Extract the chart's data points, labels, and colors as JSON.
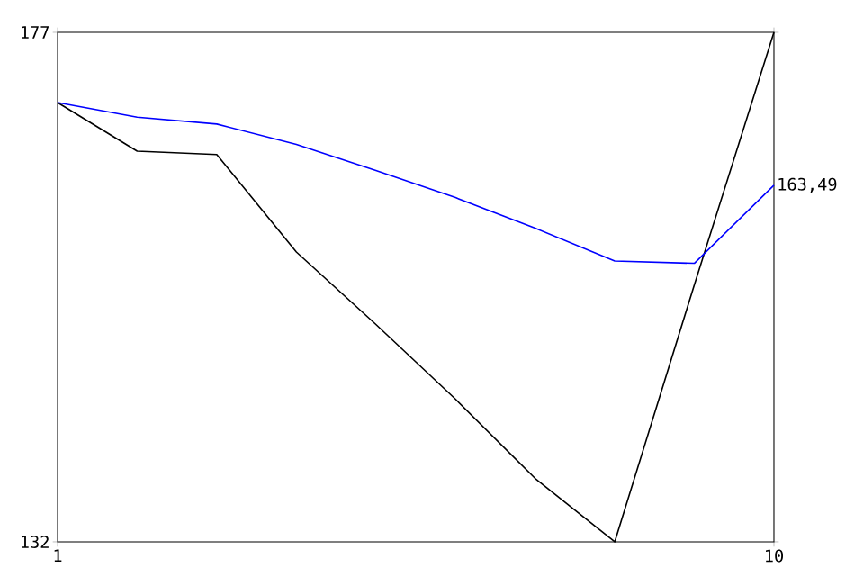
{
  "chart_data": {
    "type": "line",
    "x": [
      1,
      2,
      3,
      4,
      5,
      6,
      7,
      8,
      9,
      10
    ],
    "series": [
      {
        "color": "#000000",
        "values": [
          170.8,
          166.5,
          166.2,
          157.6,
          151.2,
          144.6,
          137.6,
          132,
          154.7,
          177
        ]
      },
      {
        "color": "#0000ff",
        "values": [
          170.8,
          169.5,
          168.9,
          167.1,
          164.8,
          162.4,
          159.7,
          156.8,
          156.6,
          163.49
        ]
      }
    ],
    "xlim": [
      1,
      10
    ],
    "ylim": [
      132,
      177
    ],
    "xticks": [
      1,
      10
    ],
    "yticks": [
      132,
      177
    ],
    "annotations": [
      {
        "text": "163,49",
        "x": 10,
        "y": 163.49
      }
    ],
    "grid": false,
    "marker": "none",
    "line_style": "solid"
  }
}
